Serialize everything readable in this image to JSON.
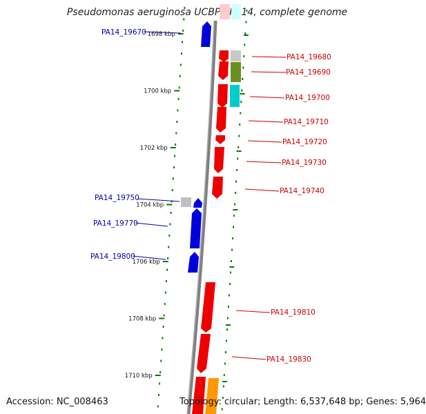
{
  "title": "Pseudomonas aeruginosa UCBPP-PA14, complete genome",
  "footer": {
    "accession": "Accession: NC_008463",
    "topology": "Topology: circular; Length: 6,537,648 bp; Genes: 5,964"
  },
  "colors": {
    "forward": "#e00000",
    "reverse": "#0000cc",
    "backbone": "#808080",
    "ticks": "#007a00",
    "label_forward": "#cc0000",
    "label_reverse": "#0000aa"
  },
  "ruler": {
    "unit": "kbp",
    "ticks": [
      {
        "kbp": 1698,
        "label": "1698 kbp"
      },
      {
        "kbp": 1700,
        "label": "1700 kbp"
      },
      {
        "kbp": 1702,
        "label": "1702 kbp"
      },
      {
        "kbp": 1704,
        "label": "1704 kbp"
      },
      {
        "kbp": 1706,
        "label": "1706 kbp"
      },
      {
        "kbp": 1708,
        "label": "1708 kbp"
      },
      {
        "kbp": 1710,
        "label": "1710 kbp"
      }
    ]
  },
  "genes": {
    "forward_labeled": [
      "PA14_19680",
      "PA14_19690",
      "PA14_19700",
      "PA14_19710",
      "PA14_19720",
      "PA14_19730",
      "PA14_19740",
      "PA14_19810",
      "PA14_19830"
    ],
    "reverse_labeled": [
      "PA14_19670",
      "PA14_19750",
      "PA14_19770",
      "PA14_19800"
    ]
  }
}
